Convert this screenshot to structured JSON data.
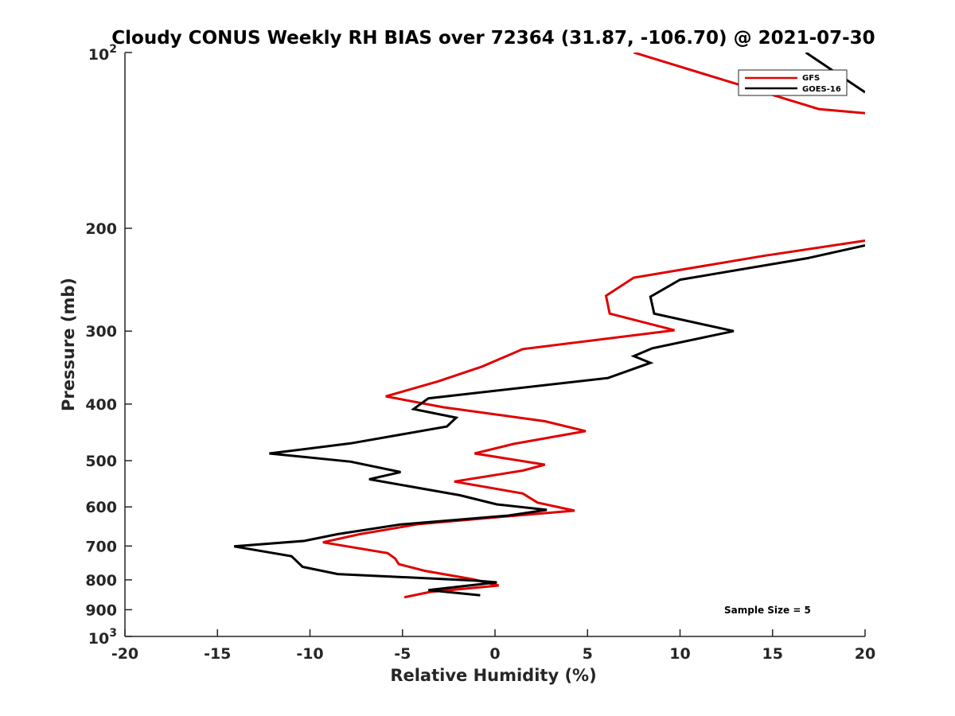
{
  "chart_data": {
    "type": "line",
    "title": "Cloudy CONUS Weekly RH BIAS over 72364 (31.87, -106.70) @ 2021-07-30",
    "xlabel": "Relative Humidity (%)",
    "ylabel": "Pressure (mb)",
    "xlim": [
      -20,
      20
    ],
    "ylim": [
      100,
      1000
    ],
    "y_scale": "log",
    "y_reversed": true,
    "grid": false,
    "legend_position": "top-right",
    "x_ticks": [
      -20,
      -15,
      -10,
      -5,
      0,
      5,
      10,
      15,
      20
    ],
    "x_tick_labels": [
      "-20",
      "-15",
      "-10",
      "-5",
      "0",
      "5",
      "10",
      "15",
      "20"
    ],
    "y_ticks": [
      200,
      300,
      400,
      500,
      600,
      700,
      800,
      900
    ],
    "y_tick_labels": [
      "200",
      "300",
      "400",
      "500",
      "600",
      "700",
      "800",
      "900"
    ],
    "y_ticks_exp": [
      {
        "value": 100,
        "base": "10",
        "exp": "2"
      },
      {
        "value": 1000,
        "base": "10",
        "exp": "3"
      }
    ],
    "annotation": "Sample Size = 5",
    "series": [
      {
        "name": "GFS",
        "color": "#e00000",
        "points": [
          [
            7.5,
            100
          ],
          [
            17.5,
            125
          ],
          [
            20,
            127
          ],
          null,
          [
            20,
            210
          ],
          [
            14.5,
            223
          ],
          [
            7.5,
            243
          ],
          [
            6,
            261
          ],
          [
            6.2,
            280
          ],
          [
            9.7,
            299
          ],
          [
            1.5,
            322
          ],
          [
            -0.7,
            345
          ],
          [
            -3.1,
            366
          ],
          [
            -5.9,
            388
          ],
          [
            -2.8,
            405
          ],
          [
            2.7,
            428
          ],
          [
            4.9,
            445
          ],
          [
            1,
            468
          ],
          [
            -1.1,
            486
          ],
          [
            2.7,
            508
          ],
          [
            1.5,
            520
          ],
          [
            -2.2,
            543
          ],
          [
            1.5,
            569
          ],
          [
            2.3,
            590
          ],
          [
            4.3,
            609
          ],
          [
            -0.2,
            626
          ],
          [
            -4.1,
            642
          ],
          [
            -7.3,
            668
          ],
          [
            -9.3,
            690
          ],
          [
            -5.8,
            720
          ],
          [
            -5.4,
            735
          ],
          [
            -5.2,
            752
          ],
          [
            -3.8,
            772
          ],
          [
            -1.2,
            798
          ],
          [
            0.2,
            818
          ],
          [
            -3.5,
            839
          ],
          [
            -4.9,
            857
          ]
        ]
      },
      {
        "name": "GOES-16",
        "color": "#000000",
        "points": [
          [
            16.8,
            100
          ],
          [
            20,
            117
          ],
          null,
          [
            20,
            214
          ],
          [
            16.9,
            225
          ],
          [
            10,
            245
          ],
          [
            8.4,
            262
          ],
          [
            8.6,
            280
          ],
          [
            12.9,
            300
          ],
          [
            8.5,
            321
          ],
          [
            7.5,
            331
          ],
          [
            8.4,
            340
          ],
          [
            6.1,
            361
          ],
          [
            -3.6,
            391
          ],
          [
            -4.4,
            408
          ],
          [
            -2.1,
            422
          ],
          [
            -2.6,
            437
          ],
          [
            -7.8,
            467
          ],
          [
            -12.2,
            486
          ],
          [
            -7.8,
            502
          ],
          [
            -5.1,
            523
          ],
          [
            -6.8,
            538
          ],
          [
            -1.9,
            573
          ],
          [
            0.1,
            594
          ],
          [
            2.8,
            607
          ],
          [
            0.7,
            621
          ],
          [
            -5.1,
            643
          ],
          [
            -8.5,
            668
          ],
          [
            -10.3,
            686
          ],
          [
            -14.1,
            701
          ],
          [
            -11,
            729
          ],
          [
            -10.4,
            760
          ],
          [
            -8.5,
            782
          ],
          [
            -1.1,
            802
          ],
          [
            0.1,
            808
          ],
          [
            -3.6,
            833
          ],
          [
            -0.8,
            850
          ]
        ]
      }
    ]
  }
}
